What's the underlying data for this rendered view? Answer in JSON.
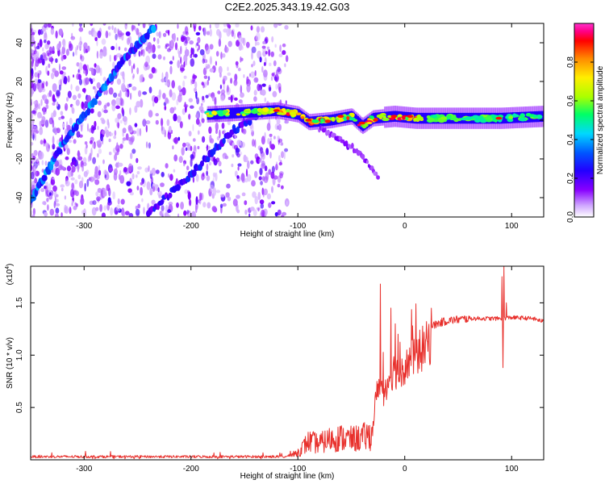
{
  "title": "C2E2.2025.343.19.42.G03",
  "chart_data": [
    {
      "type": "heatmap",
      "panel": "spectrogram",
      "xlabel": "Height of straight line (km)",
      "ylabel": "Frequency (Hz)",
      "xlim": [
        -350,
        130
      ],
      "ylim": [
        -50,
        50
      ],
      "xticks": [
        -300,
        -200,
        -100,
        0,
        100
      ],
      "xtick_labels": [
        "-300",
        "-200",
        "-100",
        "0",
        "100"
      ],
      "yticks": [
        -40,
        -20,
        0,
        20,
        40
      ],
      "ytick_labels": [
        "-40",
        "-20",
        "0",
        "20",
        "40"
      ],
      "colorbar": {
        "label": "Normalized spectral amplitude",
        "range": [
          0.0,
          1.0
        ],
        "ticks": [
          0.0,
          0.2,
          0.4,
          0.6,
          0.8
        ],
        "tick_labels": [
          "0.0",
          "0.2",
          "0.4",
          "0.6",
          "0.8"
        ],
        "colors": [
          "#ffffff",
          "#cfa6ff",
          "#8800ff",
          "#2200ff",
          "#0055ff",
          "#00d8ff",
          "#00ff66",
          "#aaff00",
          "#ffee00",
          "#ff8800",
          "#ff0000",
          "#ff0088",
          "#ff33cc"
        ]
      },
      "features": {
        "main_trace": [
          [
            -185,
            3
          ],
          [
            -150,
            4
          ],
          [
            -120,
            5
          ],
          [
            -100,
            3
          ],
          [
            -90,
            -1
          ],
          [
            -70,
            0
          ],
          [
            -50,
            2
          ],
          [
            -40,
            -3
          ],
          [
            -30,
            1
          ],
          [
            -10,
            2
          ],
          [
            10,
            1
          ],
          [
            50,
            1
          ],
          [
            90,
            1
          ],
          [
            130,
            2
          ]
        ],
        "diagonal_trace_1": [
          [
            -350,
            -42
          ],
          [
            -320,
            -12
          ],
          [
            -290,
            10
          ],
          [
            -265,
            30
          ],
          [
            -235,
            48
          ]
        ],
        "diagonal_trace_2": [
          [
            -240,
            -48
          ],
          [
            -200,
            -28
          ],
          [
            -160,
            -5
          ],
          [
            -130,
            5
          ]
        ],
        "descending_branch": [
          [
            -80,
            -4
          ],
          [
            -60,
            -10
          ],
          [
            -45,
            -16
          ],
          [
            -35,
            -22
          ],
          [
            -25,
            -30
          ]
        ]
      }
    },
    {
      "type": "line",
      "panel": "snr",
      "xlabel": "Height of straight line (km)",
      "ylabel": "SNR (10 * v/v)",
      "scale_label": "(x10",
      "scale_exponent": "4",
      "xlim": [
        -350,
        130
      ],
      "ylim": [
        0,
        1.85
      ],
      "xticks": [
        -300,
        -200,
        -100,
        0,
        100
      ],
      "xtick_labels": [
        "-300",
        "-200",
        "-100",
        "0",
        "100"
      ],
      "yticks": [
        0.5,
        1.0,
        1.5
      ],
      "ytick_labels": [
        "0.5",
        "1.0",
        "1.5"
      ],
      "color": "#e8302c",
      "envelope": [
        [
          -350,
          0.03
        ],
        [
          -110,
          0.03
        ],
        [
          -100,
          0.1
        ],
        [
          -90,
          0.25
        ],
        [
          -80,
          0.22
        ],
        [
          -70,
          0.28
        ],
        [
          -60,
          0.3
        ],
        [
          -50,
          0.28
        ],
        [
          -40,
          0.3
        ],
        [
          -30,
          0.35
        ],
        [
          -28,
          0.55
        ],
        [
          -24,
          0.85
        ],
        [
          -20,
          0.7
        ],
        [
          -15,
          0.85
        ],
        [
          -10,
          0.95
        ],
        [
          -5,
          0.9
        ],
        [
          0,
          1.0
        ],
        [
          5,
          1.05
        ],
        [
          10,
          1.1
        ],
        [
          15,
          1.15
        ],
        [
          20,
          1.2
        ],
        [
          25,
          1.27
        ],
        [
          30,
          1.3
        ],
        [
          40,
          1.33
        ],
        [
          60,
          1.35
        ],
        [
          80,
          1.35
        ],
        [
          90,
          1.35
        ],
        [
          100,
          1.36
        ],
        [
          120,
          1.35
        ],
        [
          130,
          1.32
        ]
      ],
      "spikes": [
        [
          -23,
          1.68
        ],
        [
          -13,
          1.45
        ],
        [
          -9,
          1.3
        ],
        [
          -6,
          1.2
        ],
        [
          2,
          1.05
        ],
        [
          91,
          1.75
        ],
        [
          93,
          1.85
        ],
        [
          92,
          0.88
        ],
        [
          95,
          1.5
        ]
      ]
    }
  ]
}
